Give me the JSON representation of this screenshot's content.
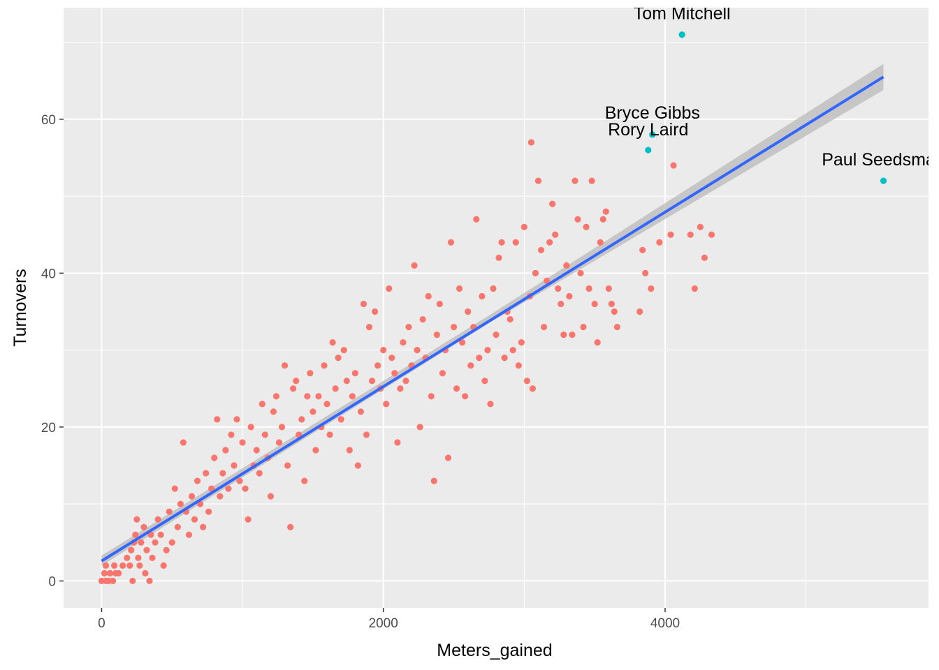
{
  "chart_data": {
    "type": "scatter",
    "xlabel": "Meters_gained",
    "ylabel": "Turnovers",
    "xlim": [
      -270,
      5870
    ],
    "ylim": [
      -3.5,
      74.5
    ],
    "x_ticks": [
      0,
      2000,
      4000
    ],
    "y_ticks": [
      0,
      20,
      40,
      60
    ],
    "grid": true,
    "legend": "none",
    "colors": {
      "panel": "#EBEBEB",
      "grid_major": "#FFFFFF",
      "points": "#F8766D",
      "highlight": "#00BFC4",
      "trend": "#3366FF",
      "ribbon": "#BDBDBD"
    },
    "trend": {
      "method": "lm",
      "x": [
        0,
        5550
      ],
      "y": [
        2.6,
        65.5
      ],
      "se_band": [
        {
          "x": 0,
          "lo": 2.0,
          "hi": 3.3
        },
        {
          "x": 2750,
          "lo": 33.5,
          "hi": 34.5
        },
        {
          "x": 5550,
          "lo": 63.8,
          "hi": 67.2
        }
      ]
    },
    "highlighted": [
      {
        "name": "Tom Mitchell",
        "x": 4120,
        "y": 71
      },
      {
        "name": "Bryce Gibbs",
        "x": 3910,
        "y": 58
      },
      {
        "name": "Rory Laird",
        "x": 3880,
        "y": 56
      },
      {
        "name": "Paul Seedsman",
        "x": 5550,
        "y": 52
      }
    ],
    "points": [
      [
        0,
        0
      ],
      [
        30,
        0
      ],
      [
        50,
        0
      ],
      [
        80,
        0
      ],
      [
        20,
        1
      ],
      [
        60,
        1
      ],
      [
        100,
        1
      ],
      [
        30,
        2
      ],
      [
        90,
        2
      ],
      [
        120,
        1
      ],
      [
        150,
        2
      ],
      [
        180,
        3
      ],
      [
        200,
        2
      ],
      [
        210,
        4
      ],
      [
        220,
        0
      ],
      [
        230,
        5
      ],
      [
        240,
        6
      ],
      [
        250,
        8
      ],
      [
        260,
        3
      ],
      [
        270,
        2
      ],
      [
        280,
        5
      ],
      [
        300,
        7
      ],
      [
        310,
        1
      ],
      [
        320,
        4
      ],
      [
        340,
        0
      ],
      [
        350,
        6
      ],
      [
        360,
        3
      ],
      [
        380,
        5
      ],
      [
        400,
        8
      ],
      [
        420,
        6
      ],
      [
        440,
        2
      ],
      [
        460,
        4
      ],
      [
        480,
        9
      ],
      [
        500,
        5
      ],
      [
        520,
        12
      ],
      [
        540,
        7
      ],
      [
        560,
        10
      ],
      [
        580,
        18
      ],
      [
        600,
        9
      ],
      [
        620,
        6
      ],
      [
        640,
        11
      ],
      [
        660,
        8
      ],
      [
        680,
        13
      ],
      [
        700,
        10
      ],
      [
        720,
        7
      ],
      [
        740,
        14
      ],
      [
        760,
        9
      ],
      [
        780,
        12
      ],
      [
        800,
        16
      ],
      [
        820,
        21
      ],
      [
        840,
        11
      ],
      [
        860,
        14
      ],
      [
        880,
        17
      ],
      [
        900,
        12
      ],
      [
        920,
        19
      ],
      [
        940,
        15
      ],
      [
        960,
        21
      ],
      [
        980,
        13
      ],
      [
        1000,
        18
      ],
      [
        1020,
        12
      ],
      [
        1040,
        8
      ],
      [
        1060,
        20
      ],
      [
        1080,
        15
      ],
      [
        1100,
        17
      ],
      [
        1120,
        14
      ],
      [
        1140,
        23
      ],
      [
        1160,
        19
      ],
      [
        1180,
        16
      ],
      [
        1200,
        11
      ],
      [
        1220,
        22
      ],
      [
        1240,
        24
      ],
      [
        1260,
        18
      ],
      [
        1280,
        20
      ],
      [
        1300,
        28
      ],
      [
        1320,
        15
      ],
      [
        1340,
        7
      ],
      [
        1360,
        25
      ],
      [
        1380,
        26
      ],
      [
        1400,
        19
      ],
      [
        1420,
        21
      ],
      [
        1440,
        13
      ],
      [
        1460,
        24
      ],
      [
        1480,
        27
      ],
      [
        1500,
        22
      ],
      [
        1520,
        17
      ],
      [
        1540,
        24
      ],
      [
        1560,
        20
      ],
      [
        1580,
        28
      ],
      [
        1600,
        23
      ],
      [
        1620,
        19
      ],
      [
        1640,
        31
      ],
      [
        1660,
        25
      ],
      [
        1680,
        29
      ],
      [
        1700,
        21
      ],
      [
        1720,
        30
      ],
      [
        1740,
        26
      ],
      [
        1760,
        17
      ],
      [
        1780,
        24
      ],
      [
        1800,
        27
      ],
      [
        1820,
        15
      ],
      [
        1840,
        22
      ],
      [
        1860,
        36
      ],
      [
        1880,
        19
      ],
      [
        1900,
        33
      ],
      [
        1920,
        26
      ],
      [
        1940,
        35
      ],
      [
        1960,
        28
      ],
      [
        1980,
        25
      ],
      [
        2000,
        30
      ],
      [
        2020,
        23
      ],
      [
        2040,
        38
      ],
      [
        2060,
        29
      ],
      [
        2080,
        27
      ],
      [
        2100,
        18
      ],
      [
        2120,
        25
      ],
      [
        2140,
        31
      ],
      [
        2160,
        26
      ],
      [
        2180,
        33
      ],
      [
        2200,
        28
      ],
      [
        2220,
        41
      ],
      [
        2240,
        30
      ],
      [
        2260,
        20
      ],
      [
        2280,
        34
      ],
      [
        2300,
        29
      ],
      [
        2320,
        37
      ],
      [
        2340,
        24
      ],
      [
        2360,
        13
      ],
      [
        2380,
        32
      ],
      [
        2400,
        36
      ],
      [
        2420,
        27
      ],
      [
        2440,
        30
      ],
      [
        2460,
        16
      ],
      [
        2480,
        44
      ],
      [
        2500,
        33
      ],
      [
        2520,
        25
      ],
      [
        2540,
        38
      ],
      [
        2560,
        31
      ],
      [
        2580,
        24
      ],
      [
        2600,
        35
      ],
      [
        2620,
        28
      ],
      [
        2640,
        33
      ],
      [
        2660,
        47
      ],
      [
        2680,
        29
      ],
      [
        2700,
        37
      ],
      [
        2720,
        26
      ],
      [
        2740,
        30
      ],
      [
        2760,
        23
      ],
      [
        2780,
        38
      ],
      [
        2800,
        32
      ],
      [
        2820,
        42
      ],
      [
        2840,
        44
      ],
      [
        2860,
        29
      ],
      [
        2880,
        35
      ],
      [
        2900,
        34
      ],
      [
        2920,
        30
      ],
      [
        2940,
        44
      ],
      [
        2960,
        28
      ],
      [
        2980,
        31
      ],
      [
        3000,
        46
      ],
      [
        3020,
        26
      ],
      [
        3040,
        37
      ],
      [
        3060,
        25
      ],
      [
        3080,
        40
      ],
      [
        3100,
        52
      ],
      [
        3120,
        43
      ],
      [
        3140,
        33
      ],
      [
        3160,
        39
      ],
      [
        3180,
        44
      ],
      [
        3200,
        49
      ],
      [
        3220,
        45
      ],
      [
        3240,
        38
      ],
      [
        3260,
        36
      ],
      [
        3280,
        32
      ],
      [
        3300,
        41
      ],
      [
        3320,
        37
      ],
      [
        3340,
        32
      ],
      [
        3360,
        52
      ],
      [
        3380,
        47
      ],
      [
        3400,
        40
      ],
      [
        3420,
        33
      ],
      [
        3440,
        46
      ],
      [
        3460,
        38
      ],
      [
        3480,
        52
      ],
      [
        3500,
        36
      ],
      [
        3520,
        31
      ],
      [
        3540,
        44
      ],
      [
        3560,
        47
      ],
      [
        3580,
        48
      ],
      [
        3600,
        38
      ],
      [
        3620,
        36
      ],
      [
        3640,
        35
      ],
      [
        3660,
        33
      ],
      [
        3820,
        35
      ],
      [
        3840,
        43
      ],
      [
        3860,
        40
      ],
      [
        3900,
        38
      ],
      [
        3960,
        44
      ],
      [
        4040,
        45
      ],
      [
        4060,
        54
      ],
      [
        4180,
        45
      ],
      [
        4210,
        38
      ],
      [
        4250,
        46
      ],
      [
        4280,
        42
      ],
      [
        4330,
        45
      ],
      [
        3050,
        57
      ]
    ]
  }
}
